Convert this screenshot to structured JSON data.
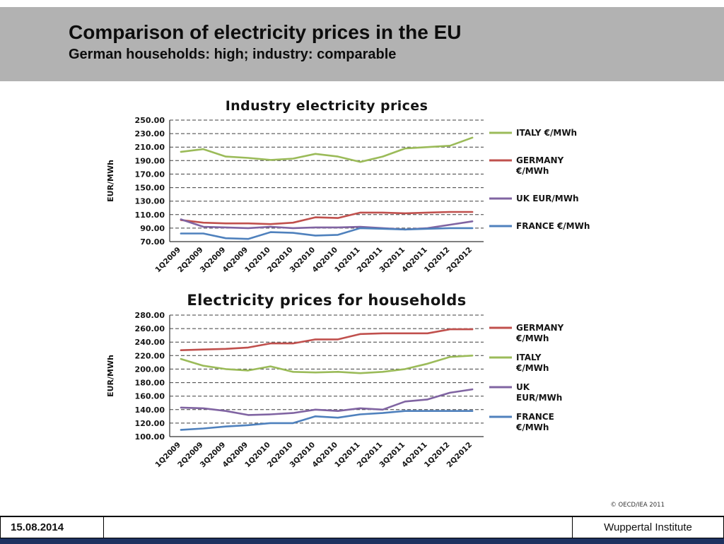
{
  "slide": {
    "title": "Comparison of electricity prices in the EU",
    "subtitle": "German households: high; industry: comparable",
    "footer_date": "15.08.2014",
    "footer_right": "Wuppertal Institute",
    "copyright": "© OECD/IEA 2011"
  },
  "chart_data": [
    {
      "type": "line",
      "title": "Industry electricity prices",
      "ylabel": "EUR/MWh",
      "ylim": [
        70,
        250
      ],
      "ytick_step": 20,
      "grid": "dashed-horizontal",
      "legend_position": "right",
      "categories": [
        "1Q2009",
        "2Q2009",
        "3Q2009",
        "4Q2009",
        "1Q2010",
        "2Q2010",
        "3Q2010",
        "4Q2010",
        "1Q2011",
        "2Q2011",
        "3Q2011",
        "4Q2011",
        "1Q2012",
        "2Q2012"
      ],
      "series": [
        {
          "name": "ITALY €/MWh",
          "legend_lines": [
            "ITALY €/MWh"
          ],
          "color": "#9BBB59",
          "values": [
            203,
            207,
            196,
            194,
            191,
            193,
            200,
            196,
            188,
            196,
            208,
            210,
            212,
            224
          ]
        },
        {
          "name": "GERMANY €/MWh",
          "legend_lines": [
            "GERMANY",
            "€/MWh"
          ],
          "color": "#C0504D",
          "values": [
            102,
            98,
            97,
            97,
            96,
            98,
            106,
            105,
            113,
            113,
            112,
            113,
            114,
            114
          ]
        },
        {
          "name": "UK EUR/MWh",
          "legend_lines": [
            "UK  EUR/MWh"
          ],
          "color": "#8064A2",
          "values": [
            103,
            92,
            91,
            90,
            92,
            90,
            91,
            91,
            92,
            90,
            88,
            90,
            95,
            100
          ]
        },
        {
          "name": "FRANCE €/MWh",
          "legend_lines": [
            "FRANCE €/MWh"
          ],
          "color": "#4F81BD",
          "values": [
            82,
            82,
            75,
            74,
            84,
            83,
            79,
            80,
            90,
            89,
            88,
            89,
            90,
            90
          ]
        }
      ]
    },
    {
      "type": "line",
      "title": "Electricity prices for households",
      "ylabel": "EUR/MWh",
      "ylim": [
        100,
        280
      ],
      "ytick_step": 20,
      "grid": "dashed-horizontal",
      "legend_position": "right",
      "categories": [
        "1Q2009",
        "2Q2009",
        "3Q2009",
        "4Q2009",
        "1Q2010",
        "2Q2010",
        "3Q2010",
        "4Q2010",
        "1Q2011",
        "2Q2011",
        "3Q2011",
        "4Q2011",
        "1Q2012",
        "2Q2012"
      ],
      "series": [
        {
          "name": "GERMANY €/MWh",
          "legend_lines": [
            "GERMANY",
            "€/MWh"
          ],
          "color": "#C0504D",
          "values": [
            228,
            229,
            230,
            232,
            238,
            238,
            244,
            244,
            252,
            253,
            253,
            253,
            259,
            259
          ]
        },
        {
          "name": "ITALY €/MWh",
          "legend_lines": [
            "ITALY",
            "€/MWh"
          ],
          "color": "#9BBB59",
          "values": [
            215,
            205,
            200,
            198,
            204,
            196,
            195,
            196,
            194,
            196,
            200,
            208,
            218,
            220
          ]
        },
        {
          "name": "UK EUR/MWh",
          "legend_lines": [
            "UK",
            "EUR/MWh"
          ],
          "color": "#8064A2",
          "values": [
            143,
            142,
            138,
            132,
            133,
            135,
            140,
            138,
            142,
            140,
            152,
            155,
            165,
            170
          ]
        },
        {
          "name": "FRANCE €/MWh",
          "legend_lines": [
            "FRANCE",
            "€/MWh"
          ],
          "color": "#4F81BD",
          "values": [
            110,
            112,
            115,
            117,
            120,
            120,
            130,
            128,
            133,
            135,
            138,
            138,
            138,
            138
          ]
        }
      ]
    }
  ]
}
